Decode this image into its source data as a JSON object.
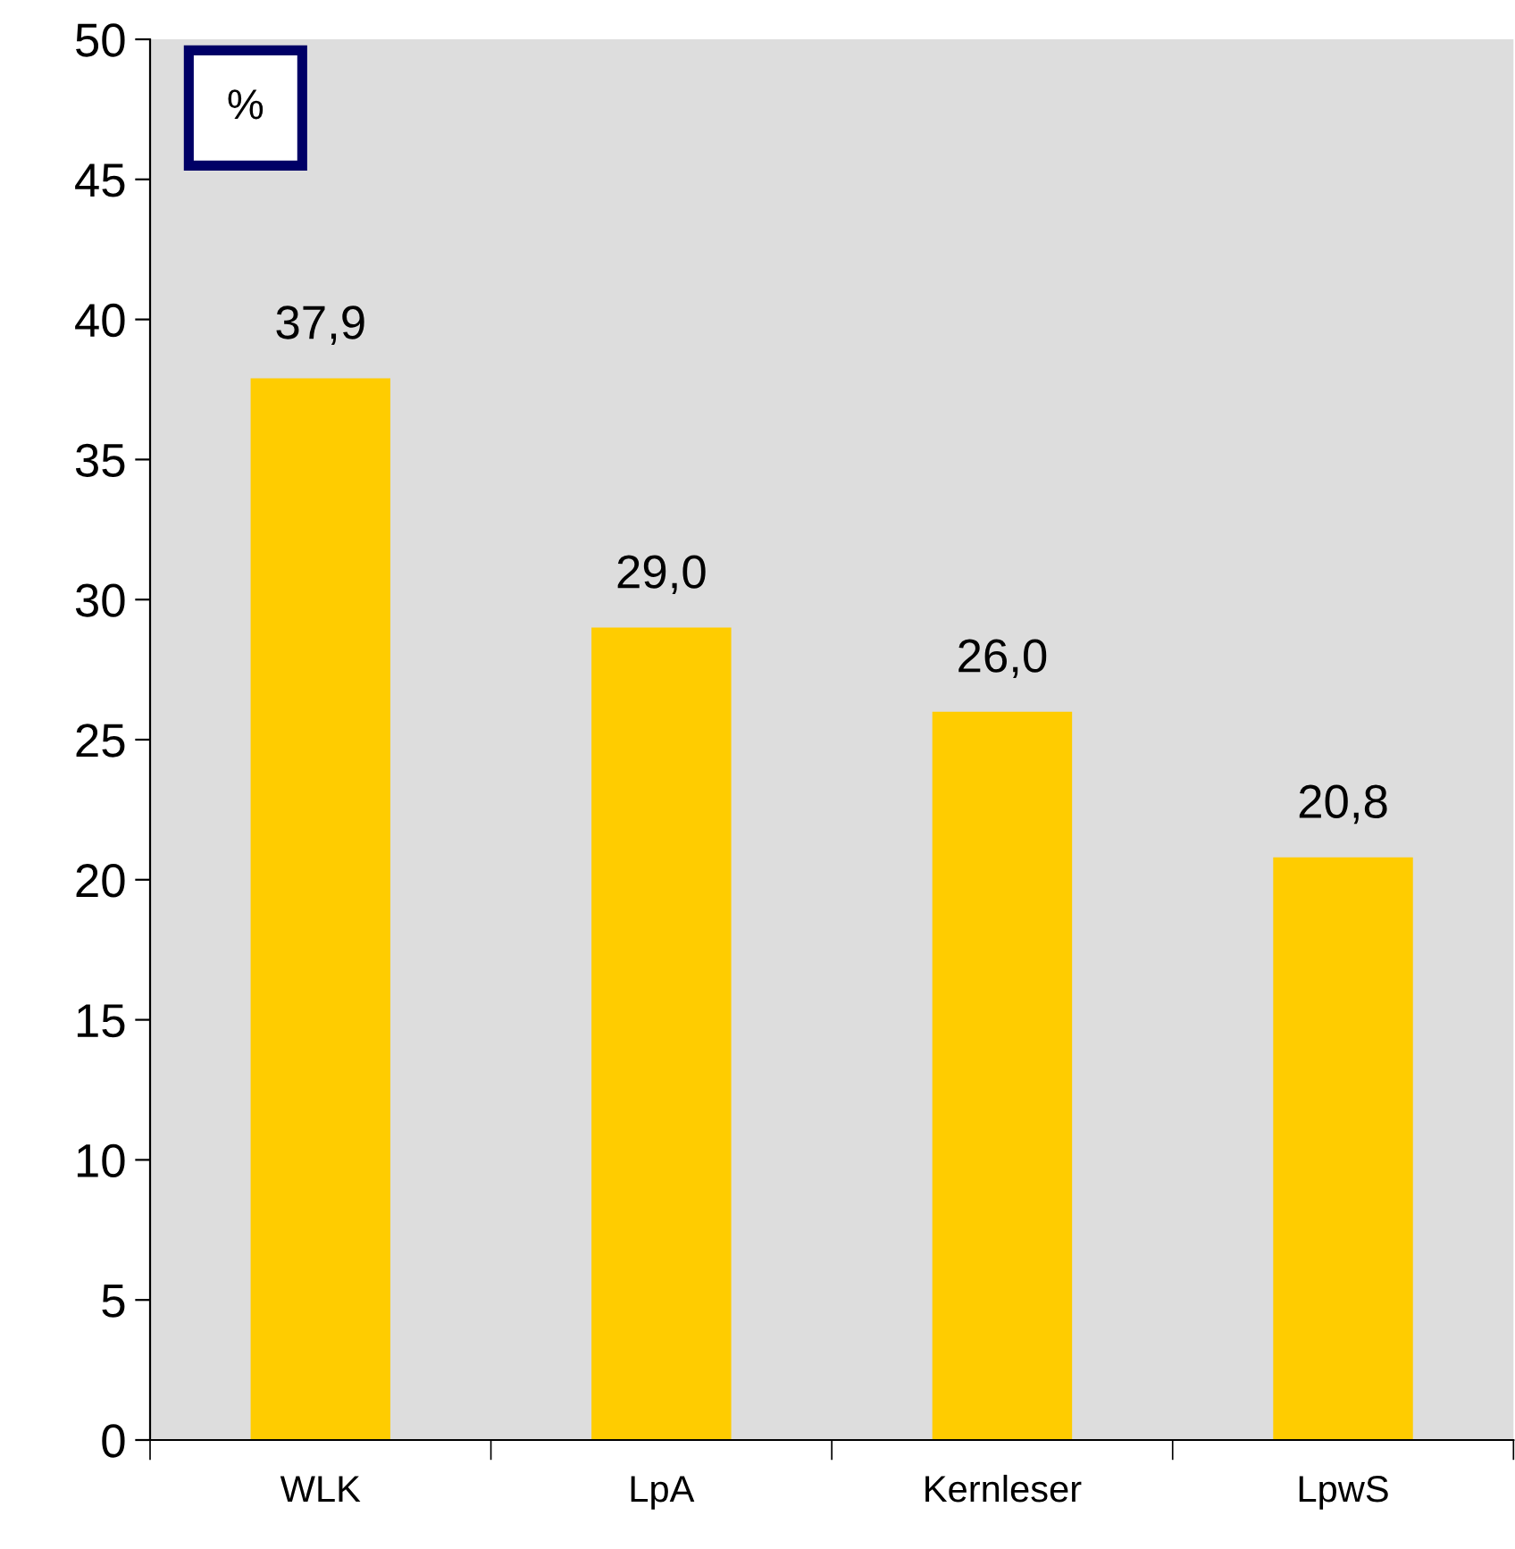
{
  "chart_data": {
    "type": "bar",
    "ylabel": "%",
    "categories": [
      "WLK",
      "LpA",
      "Kernleser",
      "LpwS"
    ],
    "values": [
      37.9,
      29.0,
      26.0,
      20.8
    ],
    "value_labels": [
      "37,9",
      "29,0",
      "26,0",
      "20,8"
    ],
    "color": "#ffcc00",
    "ylim": [
      0,
      50
    ],
    "yticks": [
      0,
      5,
      10,
      15,
      20,
      25,
      30,
      35,
      40,
      45,
      50
    ],
    "grid": false,
    "legend": false
  }
}
